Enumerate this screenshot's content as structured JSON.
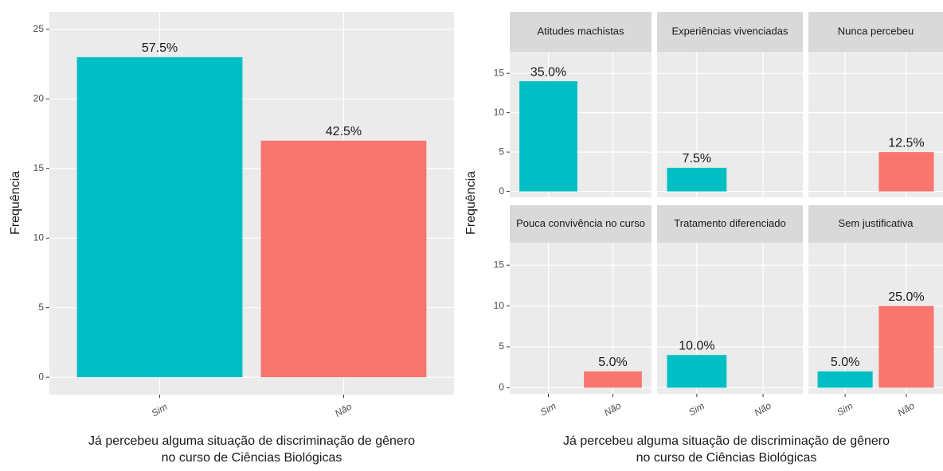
{
  "chart_data": [
    {
      "type": "bar",
      "categories": [
        "Sim",
        "Não"
      ],
      "values": [
        23,
        17
      ],
      "value_labels": [
        "57.5%",
        "42.5%"
      ],
      "colors": [
        "#00BFC4",
        "#F8766D"
      ],
      "ylim": [
        -1.25,
        26.25
      ],
      "yticks": [
        0,
        5,
        10,
        15,
        20,
        25
      ],
      "ylabel": "Frequência",
      "xlabel": [
        "Já percebeu alguma situação de discriminação de gênero",
        "no curso de Ciências Biológicas"
      ],
      "grid": true
    },
    {
      "type": "facet_bar",
      "categories": [
        "Sim",
        "Não"
      ],
      "colors": [
        "#00BFC4",
        "#F8766D"
      ],
      "facets": [
        {
          "title": "Atitudes machistas",
          "values": [
            14,
            null
          ],
          "value_labels": [
            "35.0%",
            null
          ]
        },
        {
          "title": "Experiências vivenciadas",
          "values": [
            3,
            null
          ],
          "value_labels": [
            "7.5%",
            null
          ]
        },
        {
          "title": "Nunca percebeu",
          "values": [
            null,
            5
          ],
          "value_labels": [
            null,
            "12.5%"
          ]
        },
        {
          "title": "Pouca convivência no curso",
          "values": [
            null,
            2
          ],
          "value_labels": [
            null,
            "5.0%"
          ]
        },
        {
          "title": "Tratamento diferenciado",
          "values": [
            4,
            null
          ],
          "value_labels": [
            "10.0%",
            null
          ]
        },
        {
          "title": "Sem justificativa",
          "values": [
            2,
            10
          ],
          "value_labels": [
            "5.0%",
            "25.0%"
          ]
        }
      ],
      "ylim": [
        -0.75,
        17.75
      ],
      "yticks": [
        0,
        5,
        10,
        15
      ],
      "ylabel": "Frequência",
      "xlabel": [
        "Já percebeu alguma situação de discriminação de gênero",
        "no curso de Ciências Biológicas"
      ],
      "grid": true
    }
  ]
}
